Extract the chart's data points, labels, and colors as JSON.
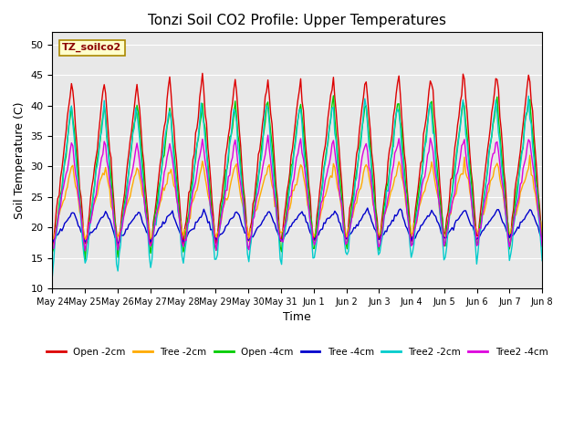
{
  "title": "Tonzi Soil CO2 Profile: Upper Temperatures",
  "xlabel": "Time",
  "ylabel": "Soil Temperature (C)",
  "ylim": [
    10,
    52
  ],
  "yticks": [
    10,
    15,
    20,
    25,
    30,
    35,
    40,
    45,
    50
  ],
  "background_color": "#e8e8e8",
  "legend_label": "TZ_soilco2",
  "series_labels": [
    "Open -2cm",
    "Tree -2cm",
    "Open -4cm",
    "Tree -4cm",
    "Tree2 -2cm",
    "Tree2 -4cm"
  ],
  "series_colors": [
    "#dd0000",
    "#ffaa00",
    "#00cc00",
    "#0000cc",
    "#00cccc",
    "#dd00dd"
  ],
  "x_tick_labels": [
    "May 24",
    "May 25",
    "May 26",
    "May 27",
    "May 28",
    "May 29",
    "May 30",
    "May 31",
    "Jun 1",
    "Jun 2",
    "Jun 3",
    "Jun 4",
    "Jun 5",
    "Jun 6",
    "Jun 7",
    "Jun 8"
  ],
  "n_days": 16
}
